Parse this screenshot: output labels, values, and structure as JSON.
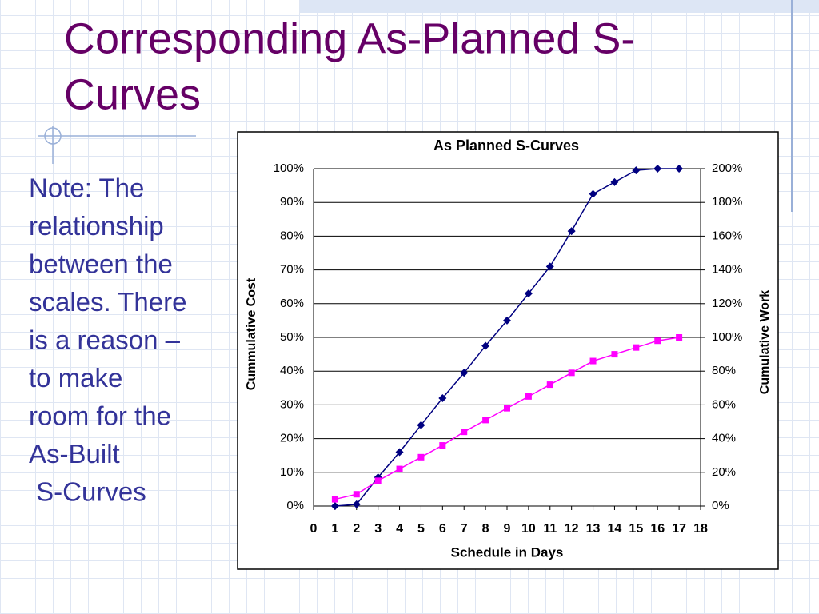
{
  "slide": {
    "title_lines": [
      "Corresponding As-Planned S-",
      "Curves"
    ],
    "note_lines": [
      "Note: The",
      "relationship",
      "between the",
      "scales. There",
      "is a reason –",
      "to make",
      "room for the",
      "As-Built",
      " S-Curves"
    ]
  },
  "chart_data": {
    "type": "line",
    "title": "As Planned S-Curves",
    "x_label": "Schedule in Days",
    "y_label": "Cummulative Cost",
    "y2_label": "Cumulative Work",
    "x": [
      1,
      2,
      3,
      4,
      5,
      6,
      7,
      8,
      9,
      10,
      11,
      12,
      13,
      14,
      15,
      16,
      17
    ],
    "series": [
      {
        "color": "#000080",
        "marker": "diamond",
        "values": [
          0,
          0.5,
          8.5,
          16,
          24,
          32,
          39.5,
          47.5,
          55,
          63,
          71,
          81.5,
          92.5,
          96,
          99.5,
          100,
          100
        ]
      },
      {
        "color": "#ff00ff",
        "marker": "square",
        "axis": "y2",
        "values": [
          4,
          7,
          15,
          22,
          29,
          36,
          44,
          51,
          58,
          65,
          72,
          79,
          86,
          90,
          94,
          98,
          100
        ]
      }
    ],
    "xlim": [
      0,
      18
    ],
    "xticks": [
      0,
      1,
      2,
      3,
      4,
      5,
      6,
      7,
      8,
      9,
      10,
      11,
      12,
      13,
      14,
      15,
      16,
      17,
      18
    ],
    "ylim": [
      0,
      100
    ],
    "yticks": [
      {
        "value": 0,
        "label": "0%"
      },
      {
        "value": 10,
        "label": "10%"
      },
      {
        "value": 20,
        "label": "20%"
      },
      {
        "value": 30,
        "label": "30%"
      },
      {
        "value": 40,
        "label": "40%"
      },
      {
        "value": 50,
        "label": "50%"
      },
      {
        "value": 60,
        "label": "60%"
      },
      {
        "value": 70,
        "label": "70%"
      },
      {
        "value": 80,
        "label": "80%"
      },
      {
        "value": 90,
        "label": "90%"
      },
      {
        "value": 100,
        "label": "100%"
      }
    ],
    "y2lim": [
      0,
      200
    ],
    "y2ticks": [
      {
        "value": 0,
        "label": "0%"
      },
      {
        "value": 20,
        "label": "20%"
      },
      {
        "value": 40,
        "label": "40%"
      },
      {
        "value": 60,
        "label": "60%"
      },
      {
        "value": 80,
        "label": "80%"
      },
      {
        "value": 100,
        "label": "100%"
      },
      {
        "value": 120,
        "label": "120%"
      },
      {
        "value": 140,
        "label": "140%"
      },
      {
        "value": 160,
        "label": "160%"
      },
      {
        "value": 180,
        "label": "180%"
      },
      {
        "value": 200,
        "label": "200%"
      }
    ],
    "grid": true
  }
}
